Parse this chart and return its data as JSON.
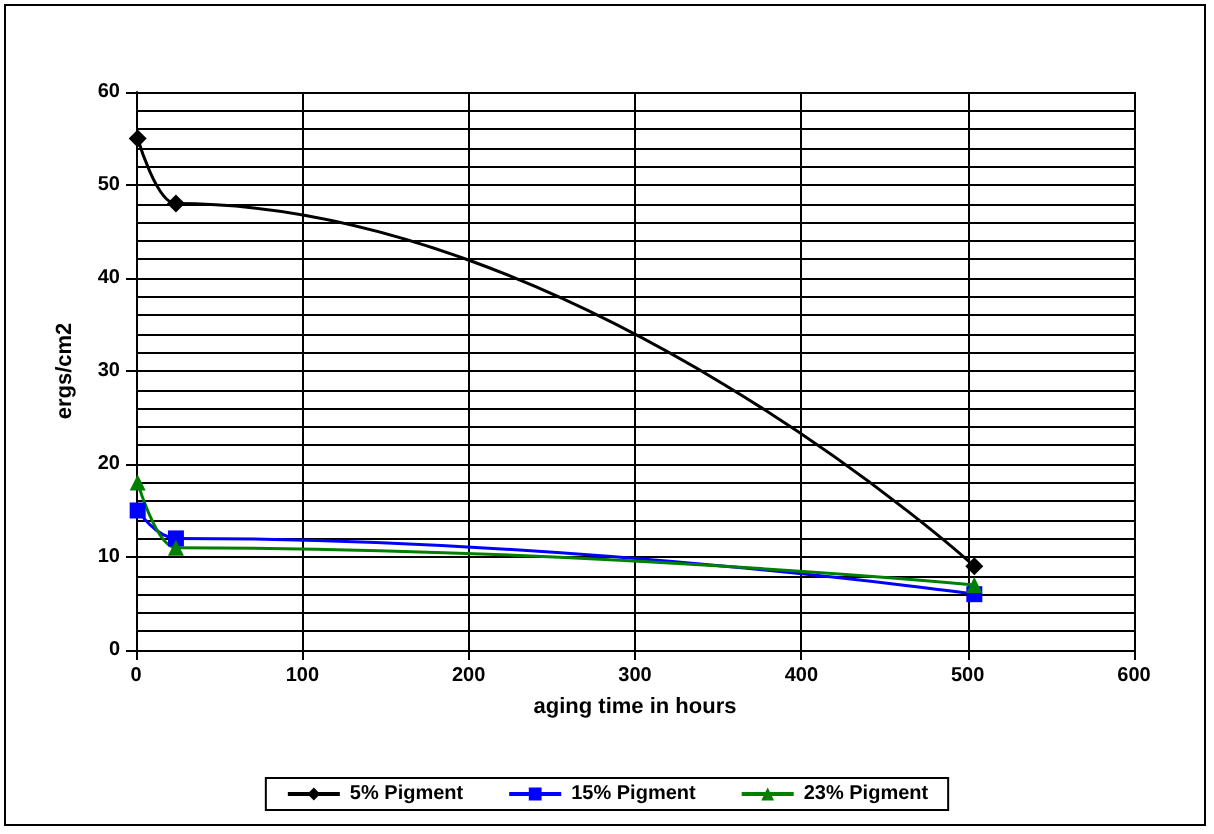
{
  "chart_data": {
    "type": "line",
    "xlabel": "aging time in hours",
    "ylabel": "ergs/cm2",
    "xlim": [
      0,
      600
    ],
    "xticks": [
      0,
      100,
      200,
      300,
      400,
      500,
      600
    ],
    "ylim": [
      0,
      60
    ],
    "yticks": [
      0,
      10,
      20,
      30,
      40,
      50,
      60
    ],
    "grid": true,
    "legend": "bottom",
    "series": [
      {
        "name": "5% Pigment",
        "color": "#000000",
        "marker": "diamond",
        "x": [
          1,
          24,
          504
        ],
        "values": [
          55,
          48,
          9
        ]
      },
      {
        "name": "15% Pigment",
        "color": "#0000ff",
        "marker": "square",
        "x": [
          1,
          24,
          504
        ],
        "values": [
          15,
          12,
          6
        ]
      },
      {
        "name": "23% Pigment",
        "color": "#008000",
        "marker": "triangle",
        "x": [
          1,
          24,
          504
        ],
        "values": [
          18,
          11,
          7
        ]
      }
    ]
  }
}
